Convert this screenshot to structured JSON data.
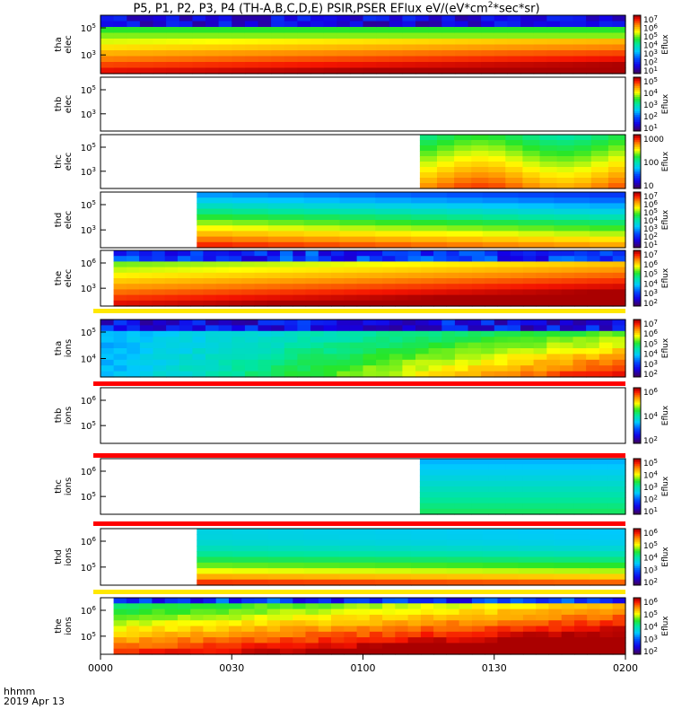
{
  "title": {
    "prefix": "P5, P1, P2, P3, P4 (TH-A,B,C,D,E) PSIR,PSER EFlux eV/(eV*cm",
    "sup": "2",
    "suffix": "*sec*sr)"
  },
  "time_axis": {
    "label": "hhmm",
    "date": "2019 Apr 13",
    "ticks": [
      "0000",
      "0030",
      "0100",
      "0130",
      "0200"
    ]
  },
  "chart_data": [
    {
      "type": "heatmap",
      "panel": "tha-elec",
      "ylabel": [
        "tha",
        "elec"
      ],
      "yticks": [
        "10",
        "10"
      ],
      "yexp": [
        "5",
        "3"
      ],
      "colorbar": {
        "label": "Eflux",
        "ticks": [
          "10",
          "10",
          "10",
          "10",
          "10",
          "10",
          "10"
        ],
        "exp": [
          "7",
          "6",
          "5",
          "4",
          "3",
          "2",
          "1"
        ]
      },
      "start_hhmm": "0000",
      "profile": "full-elec"
    },
    {
      "type": "heatmap",
      "panel": "thb-elec",
      "ylabel": [
        "thb",
        "elec"
      ],
      "yticks": [
        "10",
        "10"
      ],
      "yexp": [
        "5",
        "3"
      ],
      "colorbar": {
        "label": "Eflux",
        "ticks": [
          "10",
          "10",
          "10",
          "10",
          "10"
        ],
        "exp": [
          "5",
          "4",
          "3",
          "2",
          "1"
        ]
      },
      "start_hhmm": "0200",
      "profile": "empty"
    },
    {
      "type": "heatmap",
      "panel": "thc-elec",
      "ylabel": [
        "thc",
        "elec"
      ],
      "yticks": [
        "10",
        "10"
      ],
      "yexp": [
        "5",
        "3"
      ],
      "colorbar": {
        "label": "Eflux",
        "ticks": [
          "1000",
          "100",
          "10"
        ],
        "exp": [
          "",
          "",
          ""
        ]
      },
      "start_hhmm": "0113",
      "profile": "coarse-elec"
    },
    {
      "type": "heatmap",
      "panel": "thd-elec",
      "ylabel": [
        "thd",
        "elec"
      ],
      "yticks": [
        "10",
        "10"
      ],
      "yexp": [
        "5",
        "3"
      ],
      "colorbar": {
        "label": "Eflux",
        "ticks": [
          "10",
          "10",
          "10",
          "10",
          "10",
          "10",
          "10"
        ],
        "exp": [
          "7",
          "6",
          "5",
          "4",
          "3",
          "2",
          "1"
        ]
      },
      "start_hhmm": "0022",
      "profile": "coarse-elec-d"
    },
    {
      "type": "heatmap",
      "panel": "the-elec",
      "ylabel": [
        "the",
        "elec"
      ],
      "yticks": [
        "10",
        "10"
      ],
      "yexp": [
        "6",
        "3"
      ],
      "colorbar": {
        "label": "Eflux",
        "ticks": [
          "10",
          "10",
          "10",
          "10",
          "10",
          "10"
        ],
        "exp": [
          "7",
          "6",
          "5",
          "4",
          "3",
          "2"
        ]
      },
      "start_hhmm": "0003",
      "profile": "hot-elec"
    },
    {
      "type": "heatmap",
      "panel": "tha-ions",
      "ylabel": [
        "tha",
        "ions"
      ],
      "yticks": [
        "10",
        "10"
      ],
      "yexp": [
        "5",
        "4"
      ],
      "colorbar": {
        "label": "Eflux",
        "ticks": [
          "10",
          "10",
          "10",
          "10",
          "10",
          "10"
        ],
        "exp": [
          "7",
          "6",
          "5",
          "4",
          "3",
          "2"
        ]
      },
      "start_hhmm": "0000",
      "profile": "full-ions"
    },
    {
      "type": "heatmap",
      "panel": "thb-ions",
      "ylabel": [
        "thb",
        "ions"
      ],
      "yticks": [
        "10",
        "10"
      ],
      "yexp": [
        "6",
        "5"
      ],
      "colorbar": {
        "label": "Eflux",
        "ticks": [
          "10",
          "10",
          "10"
        ],
        "exp": [
          "6",
          "4",
          "2"
        ]
      },
      "start_hhmm": "0200",
      "profile": "empty"
    },
    {
      "type": "heatmap",
      "panel": "thc-ions",
      "ylabel": [
        "thc",
        "ions"
      ],
      "yticks": [
        "10",
        "10"
      ],
      "yexp": [
        "6",
        "5"
      ],
      "colorbar": {
        "label": "Eflux",
        "ticks": [
          "10",
          "10",
          "10",
          "10",
          "10"
        ],
        "exp": [
          "5",
          "4",
          "3",
          "2",
          "1"
        ]
      },
      "start_hhmm": "0113",
      "profile": "coarse-ions-c"
    },
    {
      "type": "heatmap",
      "panel": "thd-ions",
      "ylabel": [
        "thd",
        "ions"
      ],
      "yticks": [
        "10",
        "10"
      ],
      "yexp": [
        "6",
        "5"
      ],
      "colorbar": {
        "label": "Eflux",
        "ticks": [
          "10",
          "10",
          "10",
          "10",
          "10"
        ],
        "exp": [
          "6",
          "5",
          "4",
          "3",
          "2"
        ]
      },
      "start_hhmm": "0022",
      "profile": "coarse-ions-d"
    },
    {
      "type": "heatmap",
      "panel": "the-ions",
      "ylabel": [
        "the",
        "ions"
      ],
      "yticks": [
        "10",
        "10"
      ],
      "yexp": [
        "6",
        "5"
      ],
      "colorbar": {
        "label": "Eflux",
        "ticks": [
          "10",
          "10",
          "10",
          "10",
          "10"
        ],
        "exp": [
          "6",
          "5",
          "4",
          "3",
          "2"
        ]
      },
      "start_hhmm": "0003",
      "profile": "hot-ions"
    }
  ]
}
